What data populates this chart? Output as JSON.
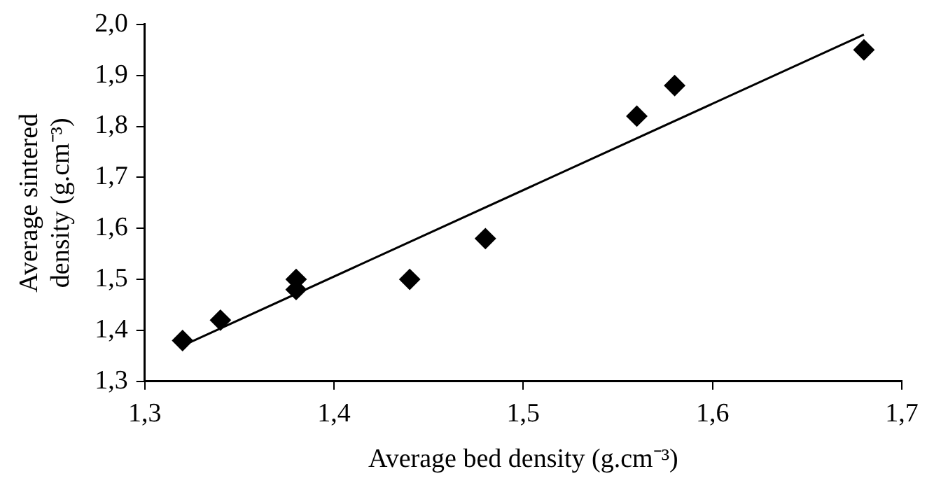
{
  "chart_data": {
    "type": "scatter",
    "xlabel": "Average bed density (g.cm⁻³)",
    "ylabel": "Average sintered density (g.cm⁻³)",
    "x": [
      1.32,
      1.34,
      1.38,
      1.38,
      1.44,
      1.48,
      1.56,
      1.58,
      1.68
    ],
    "series": [
      {
        "color": "#000000",
        "marker": "diamond",
        "values": [
          1.38,
          1.42,
          1.5,
          1.48,
          1.5,
          1.58,
          1.82,
          1.88,
          1.95
        ]
      },
      {
        "type": "line",
        "color": "#000000",
        "marker": "none",
        "line_style": "solid",
        "x": [
          1.32,
          1.68
        ],
        "values": [
          1.37,
          1.98
        ]
      }
    ],
    "xlim": [
      1.3,
      1.7
    ],
    "ylim": [
      1.3,
      2.0
    ],
    "xticks": [
      {
        "value": 1.3,
        "label": "1,3"
      },
      {
        "value": 1.4,
        "label": "1,4"
      },
      {
        "value": 1.5,
        "label": "1,5"
      },
      {
        "value": 1.6,
        "label": "1,6"
      },
      {
        "value": 1.7,
        "label": "1,7"
      }
    ],
    "yticks": [
      {
        "value": 1.3,
        "label": "1,3"
      },
      {
        "value": 1.4,
        "label": "1,4"
      },
      {
        "value": 1.5,
        "label": "1,5"
      },
      {
        "value": 1.6,
        "label": "1,6"
      },
      {
        "value": 1.7,
        "label": "1,7"
      },
      {
        "value": 1.8,
        "label": "1,8"
      },
      {
        "value": 1.9,
        "label": "1,9"
      },
      {
        "value": 2.0,
        "label": "2,0"
      }
    ],
    "grid": false,
    "legend": false
  }
}
